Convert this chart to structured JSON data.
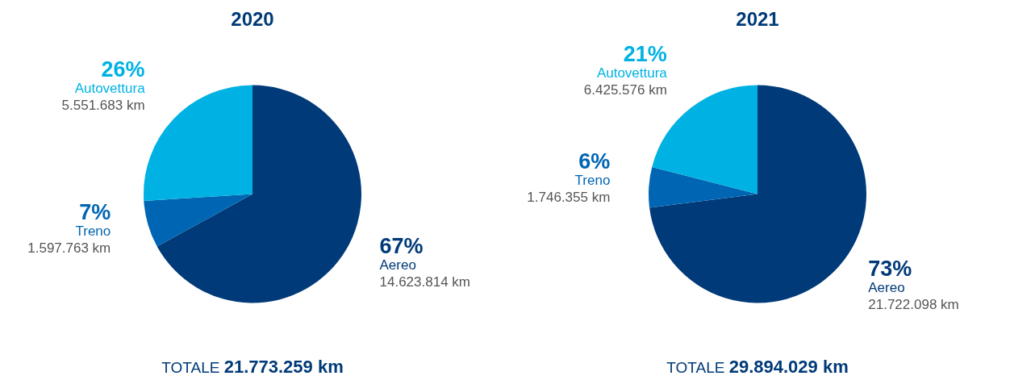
{
  "chart_data": [
    {
      "type": "pie",
      "title": "2020",
      "categories": [
        "Aereo",
        "Treno",
        "Autovettura"
      ],
      "values": [
        67,
        7,
        26
      ],
      "colors": [
        "#003a78",
        "#0066b3",
        "#00b2e3"
      ],
      "value_labels": [
        "67%",
        "7%",
        "26%"
      ],
      "legend": false,
      "annotations": [
        "14.623.814 km",
        "1.597.763 km",
        "5.551.683 km",
        "TOTALE 21.773.259 km"
      ]
    },
    {
      "type": "pie",
      "title": "2021",
      "categories": [
        "Aereo",
        "Treno",
        "Autovettura"
      ],
      "values": [
        73,
        6,
        21
      ],
      "colors": [
        "#003a78",
        "#0066b3",
        "#00b2e3"
      ],
      "value_labels": [
        "73%",
        "6%",
        "21%"
      ],
      "legend": false,
      "annotations": [
        "21.722.098 km",
        "1.746.355 km",
        "6.425.576 km",
        "TOTALE 29.894.029 km"
      ]
    }
  ]
}
